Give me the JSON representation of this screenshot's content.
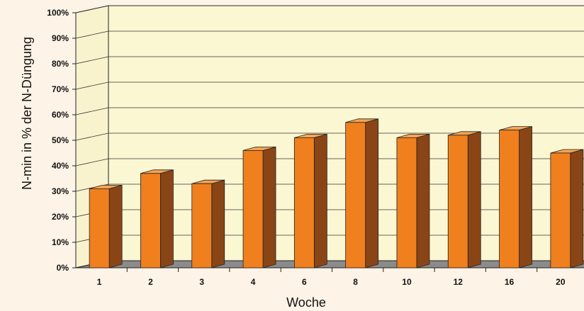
{
  "chart_data": {
    "type": "bar",
    "title": "",
    "xlabel": "Woche",
    "ylabel": "N-min in % der N-Düngung",
    "categories": [
      "1",
      "2",
      "3",
      "4",
      "6",
      "8",
      "10",
      "12",
      "16",
      "20"
    ],
    "values": [
      31,
      37,
      33,
      46,
      51,
      57,
      51,
      52,
      54,
      45
    ],
    "unit": "%",
    "ylim": [
      0,
      100
    ],
    "y_ticks": [
      "0%",
      "10%",
      "20%",
      "30%",
      "40%",
      "50%",
      "60%",
      "70%",
      "80%",
      "90%",
      "100%"
    ],
    "grid": true,
    "legend": "none",
    "style": "3d",
    "colors": {
      "bar_front": "#f07f1e",
      "bar_side": "#8a4516",
      "bar_top": "#f4a553",
      "wall": "#fbf7d2",
      "floor": "#8b8b8b",
      "background": "#fdf3e6"
    }
  }
}
